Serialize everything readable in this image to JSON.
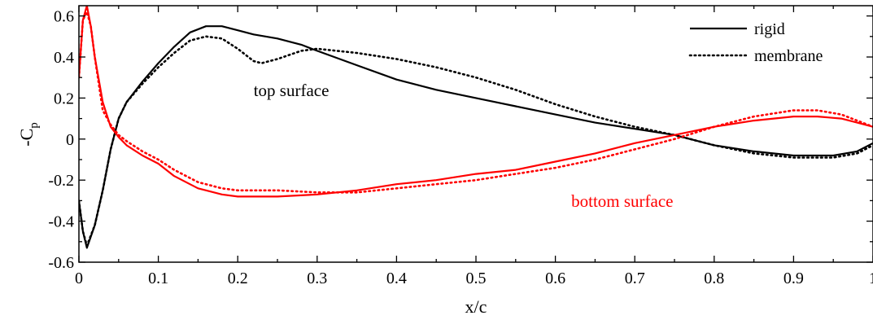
{
  "chart_data": {
    "type": "line",
    "xlabel": "x/c",
    "ylabel": "-C",
    "ylabel_subscript": "p",
    "xlim": [
      0,
      1
    ],
    "ylim": [
      -0.6,
      0.65
    ],
    "xticks": [
      0,
      0.1,
      0.2,
      0.3,
      0.4,
      0.5,
      0.6,
      0.7,
      0.8,
      0.9,
      1
    ],
    "xtick_labels": [
      "0",
      "0.1",
      "0.2",
      "0.3",
      "0.4",
      "0.5",
      "0.6",
      "0.7",
      "0.8",
      "0.9",
      "1"
    ],
    "yticks": [
      -0.6,
      -0.4,
      -0.2,
      0,
      0.2,
      0.4,
      0.6
    ],
    "ytick_labels": [
      "-0.6",
      "-0.4",
      "-0.2",
      "0",
      "0.2",
      "0.4",
      "0.6"
    ],
    "grid": false,
    "legend_position": "top-right",
    "legend": [
      {
        "label": "rigid",
        "style": "solid"
      },
      {
        "label": "membrane",
        "style": "dotted"
      }
    ],
    "annotations": [
      {
        "text": "top surface",
        "x": 0.22,
        "y": 0.21,
        "color": "#000000"
      },
      {
        "text": "bottom surface",
        "x": 0.62,
        "y": -0.33,
        "color": "#ff0000"
      }
    ],
    "series": [
      {
        "surface": "top surface",
        "config": "rigid",
        "color": "#000000",
        "style": "solid",
        "x": [
          0,
          0.005,
          0.01,
          0.02,
          0.03,
          0.04,
          0.05,
          0.06,
          0.08,
          0.1,
          0.12,
          0.14,
          0.16,
          0.18,
          0.2,
          0.22,
          0.25,
          0.28,
          0.3,
          0.35,
          0.4,
          0.45,
          0.5,
          0.55,
          0.6,
          0.65,
          0.7,
          0.75,
          0.8,
          0.85,
          0.9,
          0.95,
          0.98,
          1.0
        ],
        "y": [
          -0.3,
          -0.45,
          -0.53,
          -0.42,
          -0.25,
          -0.05,
          0.1,
          0.18,
          0.28,
          0.37,
          0.45,
          0.52,
          0.55,
          0.55,
          0.53,
          0.51,
          0.49,
          0.46,
          0.43,
          0.36,
          0.29,
          0.24,
          0.2,
          0.16,
          0.12,
          0.08,
          0.05,
          0.02,
          -0.03,
          -0.06,
          -0.08,
          -0.08,
          -0.06,
          -0.02
        ]
      },
      {
        "surface": "top surface",
        "config": "membrane",
        "color": "#000000",
        "style": "dotted",
        "x": [
          0,
          0.005,
          0.01,
          0.02,
          0.03,
          0.04,
          0.05,
          0.06,
          0.08,
          0.1,
          0.12,
          0.14,
          0.16,
          0.18,
          0.2,
          0.22,
          0.23,
          0.25,
          0.28,
          0.3,
          0.35,
          0.4,
          0.45,
          0.5,
          0.55,
          0.6,
          0.65,
          0.7,
          0.75,
          0.8,
          0.85,
          0.9,
          0.95,
          0.98,
          1.0
        ],
        "y": [
          -0.3,
          -0.45,
          -0.52,
          -0.42,
          -0.25,
          -0.05,
          0.1,
          0.18,
          0.27,
          0.35,
          0.42,
          0.48,
          0.5,
          0.49,
          0.44,
          0.38,
          0.37,
          0.39,
          0.43,
          0.44,
          0.42,
          0.39,
          0.35,
          0.3,
          0.24,
          0.17,
          0.11,
          0.06,
          0.02,
          -0.03,
          -0.07,
          -0.09,
          -0.09,
          -0.07,
          -0.03
        ]
      },
      {
        "surface": "bottom surface",
        "config": "rigid",
        "color": "#ff0000",
        "style": "solid",
        "x": [
          0,
          0.005,
          0.01,
          0.015,
          0.02,
          0.03,
          0.04,
          0.05,
          0.06,
          0.08,
          0.1,
          0.12,
          0.15,
          0.18,
          0.2,
          0.25,
          0.3,
          0.35,
          0.4,
          0.45,
          0.5,
          0.55,
          0.6,
          0.65,
          0.7,
          0.75,
          0.8,
          0.85,
          0.9,
          0.93,
          0.96,
          0.98,
          1.0
        ],
        "y": [
          0.3,
          0.58,
          0.65,
          0.55,
          0.4,
          0.18,
          0.06,
          0.01,
          -0.03,
          -0.08,
          -0.12,
          -0.18,
          -0.24,
          -0.27,
          -0.28,
          -0.28,
          -0.27,
          -0.25,
          -0.22,
          -0.2,
          -0.17,
          -0.15,
          -0.11,
          -0.07,
          -0.02,
          0.02,
          0.06,
          0.09,
          0.11,
          0.11,
          0.1,
          0.08,
          0.06
        ]
      },
      {
        "surface": "bottom surface",
        "config": "membrane",
        "color": "#ff0000",
        "style": "dotted",
        "x": [
          0,
          0.005,
          0.01,
          0.015,
          0.02,
          0.03,
          0.04,
          0.05,
          0.06,
          0.08,
          0.1,
          0.12,
          0.15,
          0.18,
          0.2,
          0.25,
          0.3,
          0.35,
          0.4,
          0.45,
          0.5,
          0.55,
          0.6,
          0.65,
          0.7,
          0.75,
          0.8,
          0.85,
          0.9,
          0.93,
          0.96,
          0.98,
          1.0
        ],
        "y": [
          0.3,
          0.58,
          0.62,
          0.55,
          0.4,
          0.14,
          0.07,
          0.02,
          -0.01,
          -0.06,
          -0.1,
          -0.15,
          -0.21,
          -0.24,
          -0.25,
          -0.25,
          -0.26,
          -0.26,
          -0.24,
          -0.22,
          -0.2,
          -0.17,
          -0.14,
          -0.1,
          -0.05,
          0.0,
          0.06,
          0.11,
          0.14,
          0.14,
          0.12,
          0.09,
          0.06
        ]
      }
    ]
  }
}
